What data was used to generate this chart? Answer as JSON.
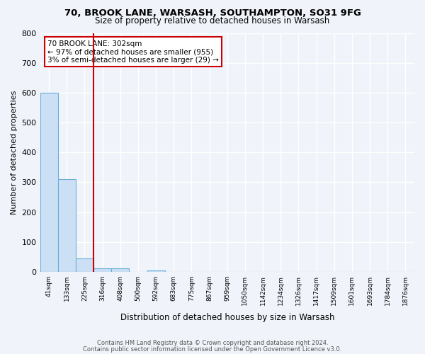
{
  "title1": "70, BROOK LANE, WARSASH, SOUTHAMPTON, SO31 9FG",
  "title2": "Size of property relative to detached houses in Warsash",
  "xlabel": "Distribution of detached houses by size in Warsash",
  "ylabel": "Number of detached properties",
  "bin_labels": [
    "41sqm",
    "133sqm",
    "225sqm",
    "316sqm",
    "408sqm",
    "500sqm",
    "592sqm",
    "683sqm",
    "775sqm",
    "867sqm",
    "959sqm",
    "1050sqm",
    "1142sqm",
    "1234sqm",
    "1326sqm",
    "1417sqm",
    "1509sqm",
    "1601sqm",
    "1693sqm",
    "1784sqm",
    "1876sqm"
  ],
  "bar_heights": [
    600,
    310,
    45,
    12,
    12,
    0,
    5,
    0,
    0,
    0,
    0,
    0,
    0,
    0,
    0,
    0,
    0,
    0,
    0,
    0,
    0
  ],
  "bar_color": "#cce0f5",
  "bar_edge_color": "#6aaed6",
  "red_line_x": 2.5,
  "annotation_text": "70 BROOK LANE: 302sqm\n← 97% of detached houses are smaller (955)\n3% of semi-detached houses are larger (29) →",
  "annotation_box_color": "#ffffff",
  "annotation_box_edge": "#cc0000",
  "red_line_color": "#cc0000",
  "ylim": [
    0,
    800
  ],
  "yticks": [
    0,
    100,
    200,
    300,
    400,
    500,
    600,
    700,
    800
  ],
  "footer1": "Contains HM Land Registry data © Crown copyright and database right 2024.",
  "footer2": "Contains public sector information licensed under the Open Government Licence v3.0.",
  "bg_color": "#f0f4fa",
  "plot_bg_color": "#f0f4fa"
}
